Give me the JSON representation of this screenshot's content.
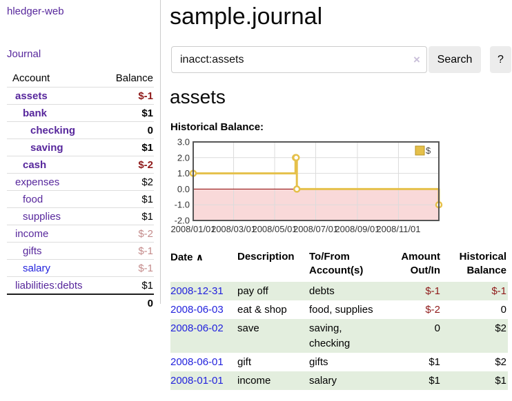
{
  "app": {
    "title": "hledger-web"
  },
  "icons": {
    "sort_ascending": "∧",
    "clear_search": "×"
  },
  "sidebar": {
    "journal_link": "Journal",
    "balance_table": {
      "account_header": "Account",
      "balance_header": "Balance",
      "accounts": [
        {
          "label": "assets",
          "balance": "$-1",
          "level": 1,
          "bold": true,
          "link_color": "purple",
          "balance_style": "neg"
        },
        {
          "label": "bank",
          "balance": "$1",
          "level": 2,
          "bold": true,
          "link_color": "purple",
          "balance_style": "pos"
        },
        {
          "label": "checking",
          "balance": "0",
          "level": 3,
          "bold": true,
          "link_color": "purple",
          "balance_style": "pos"
        },
        {
          "label": "saving",
          "balance": "$1",
          "level": 3,
          "bold": true,
          "link_color": "purple",
          "balance_style": "pos"
        },
        {
          "label": "cash",
          "balance": "$-2",
          "level": 2,
          "bold": true,
          "link_color": "purple",
          "balance_style": "neg"
        },
        {
          "label": "expenses",
          "balance": "$2",
          "level": 1,
          "bold": false,
          "link_color": "purple",
          "balance_style": "pos"
        },
        {
          "label": "food",
          "balance": "$1",
          "level": 2,
          "bold": false,
          "link_color": "purple",
          "balance_style": "pos"
        },
        {
          "label": "supplies",
          "balance": "$1",
          "level": 2,
          "bold": false,
          "link_color": "purple",
          "balance_style": "pos"
        },
        {
          "label": "income",
          "balance": "$-2",
          "level": 1,
          "bold": false,
          "link_color": "purple",
          "balance_style": "neg-muted"
        },
        {
          "label": "gifts",
          "balance": "$-1",
          "level": 2,
          "bold": false,
          "link_color": "purple",
          "balance_style": "neg-muted"
        },
        {
          "label": "salary",
          "balance": "$-1",
          "level": 2,
          "bold": false,
          "link_color": "blue",
          "balance_style": "neg-muted"
        },
        {
          "label": "liabilities:debts",
          "balance": "$1",
          "level": 1,
          "bold": false,
          "link_color": "purple",
          "balance_style": "pos"
        }
      ],
      "total": "0"
    }
  },
  "main": {
    "title": "sample.journal",
    "search": {
      "value": "inacct:assets",
      "button_label": "Search",
      "help_label": "?"
    },
    "section_title": "assets",
    "chart_heading": "Historical Balance:"
  },
  "chart_data": {
    "type": "line",
    "step": true,
    "title": "Historical Balance",
    "series": [
      {
        "name": "$",
        "x": [
          "2008-01-01",
          "2008-06-01",
          "2008-06-02",
          "2008-06-03",
          "2008-12-31"
        ],
        "values": [
          1,
          2,
          2,
          0,
          -1
        ]
      }
    ],
    "xlim": [
      "2008-01-01",
      "2008-12-31"
    ],
    "ylim": [
      -2,
      3
    ],
    "y_ticks": [
      "3.0",
      "2.0",
      "1.0",
      "0.0",
      "-1.0",
      "-2.0"
    ],
    "x_ticks": [
      "2008/01/01",
      "2008/03/01",
      "2008/05/01",
      "2008/07/01",
      "2008/09/01",
      "2008/11/01"
    ],
    "legend": {
      "label": "$",
      "position": "top-right"
    },
    "grid": true,
    "colors": {
      "line": "#e5c04a",
      "marker_fill": "#ffffff",
      "negative_area": "#f9d9d9",
      "zero_line": "#8b0000",
      "border": "#555555",
      "grid": "#dcdcdc",
      "legend_border": "#b79324",
      "tick_text": "#333333"
    }
  },
  "transactions": {
    "headers": {
      "date": "Date",
      "description": "Description",
      "accounts": "To/From Account(s)",
      "amount": "Amount Out/In",
      "balance": "Historical Balance"
    },
    "rows": [
      {
        "date": "2008-12-31",
        "description": "pay off",
        "accounts": "debts",
        "amount": "$-1",
        "amount_style": "neg",
        "balance": "$-1",
        "balance_style": "neg"
      },
      {
        "date": "2008-06-03",
        "description": "eat & shop",
        "accounts": "food, supplies",
        "amount": "$-2",
        "amount_style": "neg",
        "balance": "0",
        "balance_style": "pos"
      },
      {
        "date": "2008-06-02",
        "description": "save",
        "accounts": "saving, checking",
        "amount": "0",
        "amount_style": "pos",
        "balance": "$2",
        "balance_style": "pos"
      },
      {
        "date": "2008-06-01",
        "description": "gift",
        "accounts": "gifts",
        "amount": "$1",
        "amount_style": "pos",
        "balance": "$2",
        "balance_style": "pos"
      },
      {
        "date": "2008-01-01",
        "description": "income",
        "accounts": "salary",
        "amount": "$1",
        "amount_style": "pos",
        "balance": "$1",
        "balance_style": "pos"
      }
    ]
  },
  "colors": {
    "link_purple": "#57279c",
    "link_blue": "#2222dd",
    "negative": "#8f1a1a",
    "negative_muted": "#c48b8b",
    "row_stripe_green": "#e3eede",
    "button_bg": "#ececec",
    "input_border": "#cccccc",
    "divider": "#cccccc"
  }
}
